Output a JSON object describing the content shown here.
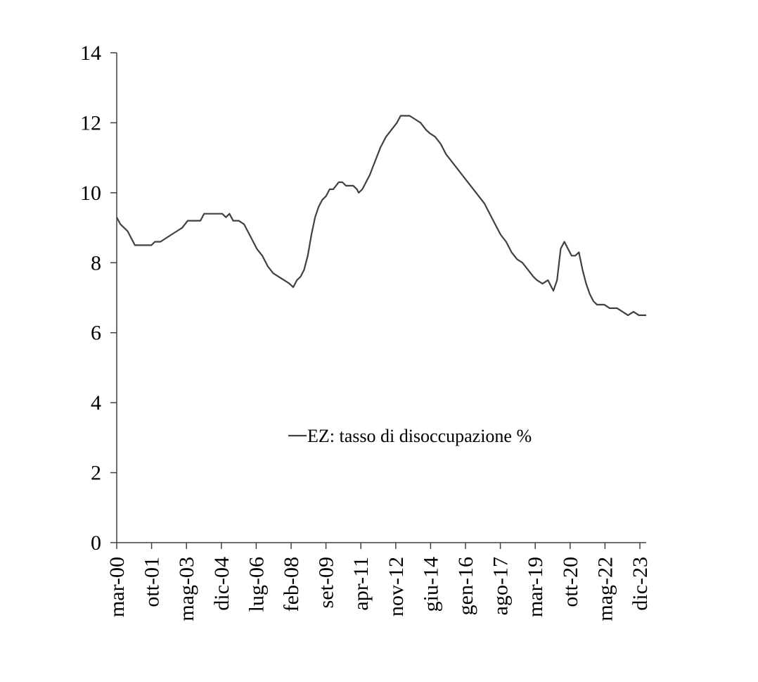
{
  "chart_data": {
    "type": "line",
    "title": "",
    "xlabel": "",
    "ylabel": "",
    "ylim": [
      0,
      14
    ],
    "y_ticks": [
      0,
      2,
      4,
      6,
      8,
      10,
      12,
      14
    ],
    "x_tick_labels": [
      "mar-00",
      "ott-01",
      "mag-03",
      "dic-04",
      "lug-06",
      "feb-08",
      "set-09",
      "apr-11",
      "nov-12",
      "giu-14",
      "gen-16",
      "ago-17",
      "mar-19",
      "ott-20",
      "mag-22",
      "dic-23"
    ],
    "grid": false,
    "legend_position": "center",
    "colors": {
      "line": "#404040",
      "axis": "#404040"
    },
    "series": [
      {
        "name": "EZ: tasso di disoccupazione %",
        "points": [
          [
            "2000-03",
            9.3
          ],
          [
            "2000-05",
            9.1
          ],
          [
            "2000-07",
            9.0
          ],
          [
            "2000-09",
            8.9
          ],
          [
            "2000-11",
            8.7
          ],
          [
            "2001-01",
            8.5
          ],
          [
            "2001-06",
            8.5
          ],
          [
            "2001-10",
            8.5
          ],
          [
            "2001-12",
            8.6
          ],
          [
            "2002-03",
            8.6
          ],
          [
            "2002-06",
            8.7
          ],
          [
            "2002-09",
            8.8
          ],
          [
            "2002-12",
            8.9
          ],
          [
            "2003-03",
            9.0
          ],
          [
            "2003-06",
            9.2
          ],
          [
            "2003-10",
            9.2
          ],
          [
            "2004-01",
            9.2
          ],
          [
            "2004-03",
            9.4
          ],
          [
            "2004-08",
            9.4
          ],
          [
            "2005-01",
            9.4
          ],
          [
            "2005-03",
            9.3
          ],
          [
            "2005-05",
            9.4
          ],
          [
            "2005-07",
            9.2
          ],
          [
            "2005-10",
            9.2
          ],
          [
            "2006-01",
            9.1
          ],
          [
            "2006-03",
            8.9
          ],
          [
            "2006-06",
            8.6
          ],
          [
            "2006-08",
            8.4
          ],
          [
            "2006-11",
            8.2
          ],
          [
            "2007-02",
            7.9
          ],
          [
            "2007-05",
            7.7
          ],
          [
            "2007-08",
            7.6
          ],
          [
            "2007-11",
            7.5
          ],
          [
            "2008-02",
            7.4
          ],
          [
            "2008-04",
            7.3
          ],
          [
            "2008-06",
            7.5
          ],
          [
            "2008-08",
            7.6
          ],
          [
            "2008-10",
            7.8
          ],
          [
            "2008-12",
            8.2
          ],
          [
            "2009-02",
            8.8
          ],
          [
            "2009-04",
            9.3
          ],
          [
            "2009-06",
            9.6
          ],
          [
            "2009-08",
            9.8
          ],
          [
            "2009-10",
            9.9
          ],
          [
            "2009-12",
            10.1
          ],
          [
            "2010-02",
            10.1
          ],
          [
            "2010-05",
            10.3
          ],
          [
            "2010-07",
            10.3
          ],
          [
            "2010-09",
            10.2
          ],
          [
            "2010-11",
            10.2
          ],
          [
            "2011-01",
            10.2
          ],
          [
            "2011-03",
            10.1
          ],
          [
            "2011-04",
            10.0
          ],
          [
            "2011-06",
            10.1
          ],
          [
            "2011-08",
            10.3
          ],
          [
            "2011-10",
            10.5
          ],
          [
            "2012-01",
            10.9
          ],
          [
            "2012-04",
            11.3
          ],
          [
            "2012-07",
            11.6
          ],
          [
            "2012-10",
            11.8
          ],
          [
            "2013-01",
            12.0
          ],
          [
            "2013-03",
            12.2
          ],
          [
            "2013-08",
            12.2
          ],
          [
            "2013-11",
            12.1
          ],
          [
            "2014-02",
            12.0
          ],
          [
            "2014-05",
            11.8
          ],
          [
            "2014-07",
            11.7
          ],
          [
            "2014-10",
            11.6
          ],
          [
            "2015-01",
            11.4
          ],
          [
            "2015-04",
            11.1
          ],
          [
            "2015-07",
            10.9
          ],
          [
            "2015-10",
            10.7
          ],
          [
            "2016-01",
            10.5
          ],
          [
            "2016-04",
            10.3
          ],
          [
            "2016-07",
            10.1
          ],
          [
            "2016-10",
            9.9
          ],
          [
            "2017-01",
            9.7
          ],
          [
            "2017-04",
            9.4
          ],
          [
            "2017-07",
            9.1
          ],
          [
            "2017-10",
            8.8
          ],
          [
            "2018-01",
            8.6
          ],
          [
            "2018-04",
            8.3
          ],
          [
            "2018-07",
            8.1
          ],
          [
            "2018-10",
            8.0
          ],
          [
            "2019-01",
            7.8
          ],
          [
            "2019-04",
            7.6
          ],
          [
            "2019-06",
            7.5
          ],
          [
            "2019-09",
            7.4
          ],
          [
            "2019-12",
            7.5
          ],
          [
            "2020-02",
            7.3
          ],
          [
            "2020-03",
            7.2
          ],
          [
            "2020-05",
            7.5
          ],
          [
            "2020-07",
            8.4
          ],
          [
            "2020-09",
            8.6
          ],
          [
            "2020-11",
            8.4
          ],
          [
            "2021-01",
            8.2
          ],
          [
            "2021-03",
            8.2
          ],
          [
            "2021-05",
            8.3
          ],
          [
            "2021-07",
            7.8
          ],
          [
            "2021-09",
            7.4
          ],
          [
            "2021-11",
            7.1
          ],
          [
            "2022-01",
            6.9
          ],
          [
            "2022-03",
            6.8
          ],
          [
            "2022-07",
            6.8
          ],
          [
            "2022-10",
            6.7
          ],
          [
            "2023-02",
            6.7
          ],
          [
            "2023-05",
            6.6
          ],
          [
            "2023-08",
            6.5
          ],
          [
            "2023-11",
            6.6
          ],
          [
            "2024-02",
            6.5
          ],
          [
            "2024-06",
            6.5
          ]
        ]
      }
    ]
  }
}
